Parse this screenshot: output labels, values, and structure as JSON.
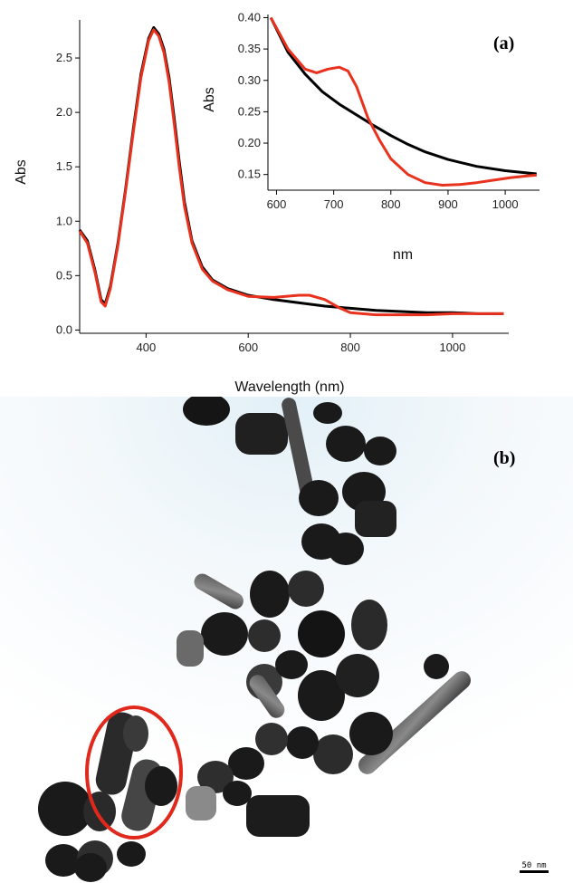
{
  "chart_data": [
    {
      "panel": "(a)",
      "type": "line",
      "xlabel": "Wavelength (nm)",
      "ylabel": "Abs",
      "xlim": [
        270,
        1110
      ],
      "ylim": [
        -0.03,
        2.85
      ],
      "xticks": [
        400,
        600,
        800,
        1000
      ],
      "yticks": [
        0.0,
        0.5,
        1.0,
        1.5,
        2.0,
        2.5
      ],
      "ytick_labels": [
        "0.0",
        "0.5",
        "1.0",
        "1.5",
        "2.0",
        "2.5"
      ],
      "grid": false,
      "series": [
        {
          "color": "#000000",
          "x": [
            270,
            285,
            300,
            312,
            320,
            330,
            345,
            360,
            375,
            390,
            405,
            415,
            425,
            435,
            445,
            455,
            465,
            475,
            490,
            510,
            530,
            560,
            600,
            650,
            700,
            750,
            800,
            850,
            900,
            950,
            1000,
            1050,
            1100
          ],
          "y": [
            0.92,
            0.82,
            0.55,
            0.28,
            0.24,
            0.4,
            0.8,
            1.3,
            1.85,
            2.35,
            2.68,
            2.78,
            2.72,
            2.58,
            2.32,
            1.95,
            1.55,
            1.18,
            0.82,
            0.58,
            0.46,
            0.38,
            0.32,
            0.28,
            0.25,
            0.22,
            0.2,
            0.18,
            0.17,
            0.16,
            0.16,
            0.15,
            0.15
          ]
        },
        {
          "color": "#e8321e",
          "x": [
            270,
            285,
            300,
            312,
            320,
            330,
            345,
            360,
            375,
            390,
            405,
            415,
            425,
            435,
            445,
            455,
            465,
            475,
            490,
            510,
            530,
            560,
            600,
            650,
            700,
            720,
            750,
            780,
            800,
            850,
            900,
            950,
            1000,
            1050,
            1100
          ],
          "y": [
            0.91,
            0.8,
            0.53,
            0.26,
            0.22,
            0.38,
            0.78,
            1.28,
            1.82,
            2.32,
            2.66,
            2.76,
            2.7,
            2.55,
            2.28,
            1.9,
            1.5,
            1.14,
            0.8,
            0.56,
            0.45,
            0.37,
            0.31,
            0.3,
            0.32,
            0.32,
            0.28,
            0.2,
            0.16,
            0.14,
            0.14,
            0.14,
            0.15,
            0.15,
            0.15
          ]
        }
      ]
    },
    {
      "panel": "(a) inset",
      "type": "line",
      "xlabel": "nm",
      "ylabel": "Abs",
      "xlim": [
        585,
        1060
      ],
      "ylim": [
        0.125,
        0.405
      ],
      "xticks": [
        600,
        700,
        800,
        900,
        1000
      ],
      "yticks": [
        0.15,
        0.2,
        0.25,
        0.3,
        0.35,
        0.4
      ],
      "ytick_labels": [
        "0.15",
        "0.20",
        "0.25",
        "0.30",
        "0.35",
        "0.40"
      ],
      "grid": false,
      "series": [
        {
          "color": "#000000",
          "x": [
            590,
            620,
            650,
            680,
            710,
            740,
            770,
            800,
            830,
            860,
            900,
            950,
            1000,
            1055
          ],
          "y": [
            0.4,
            0.345,
            0.31,
            0.282,
            0.262,
            0.245,
            0.228,
            0.212,
            0.198,
            0.186,
            0.174,
            0.163,
            0.156,
            0.151
          ]
        },
        {
          "color": "#e8321e",
          "x": [
            590,
            620,
            650,
            670,
            690,
            710,
            725,
            740,
            760,
            780,
            800,
            830,
            860,
            890,
            920,
            950,
            980,
            1010,
            1040,
            1055
          ],
          "y": [
            0.4,
            0.35,
            0.318,
            0.312,
            0.318,
            0.321,
            0.315,
            0.29,
            0.24,
            0.205,
            0.175,
            0.15,
            0.137,
            0.133,
            0.134,
            0.137,
            0.141,
            0.145,
            0.148,
            0.149
          ]
        }
      ]
    }
  ],
  "panel_b_label": "(b)",
  "scale_bar": {
    "label": "50 nm"
  },
  "colors": {
    "black_series": "#000000",
    "red_series": "#e8321e",
    "particles": "#1a1a1a",
    "highlight_ellipse": "#e0281c"
  }
}
